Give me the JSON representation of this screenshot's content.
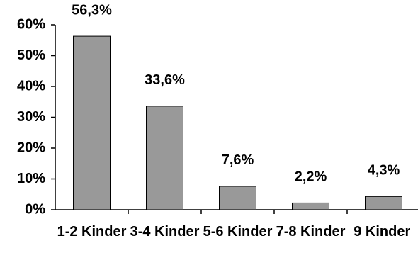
{
  "chart_data": {
    "type": "bar",
    "categories": [
      "1-2 Kinder",
      "3-4 Kinder",
      "5-6 Kinder",
      "7-8 Kinder",
      "9 Kinder"
    ],
    "values": [
      56.3,
      33.6,
      7.6,
      2.2,
      4.3
    ],
    "value_labels": [
      "56,3%",
      "33,6%",
      "7,6%",
      "2,2%",
      "4,3%"
    ],
    "color": "#999999",
    "ylim": [
      0,
      60
    ],
    "yticks": [
      {
        "value": 0,
        "label": "0%"
      },
      {
        "value": 10,
        "label": "10%"
      },
      {
        "value": 20,
        "label": "20%"
      },
      {
        "value": 30,
        "label": "30%"
      },
      {
        "value": 40,
        "label": "40%"
      },
      {
        "value": 50,
        "label": "50%"
      },
      {
        "value": 60,
        "label": "60%"
      }
    ],
    "grid": false
  }
}
